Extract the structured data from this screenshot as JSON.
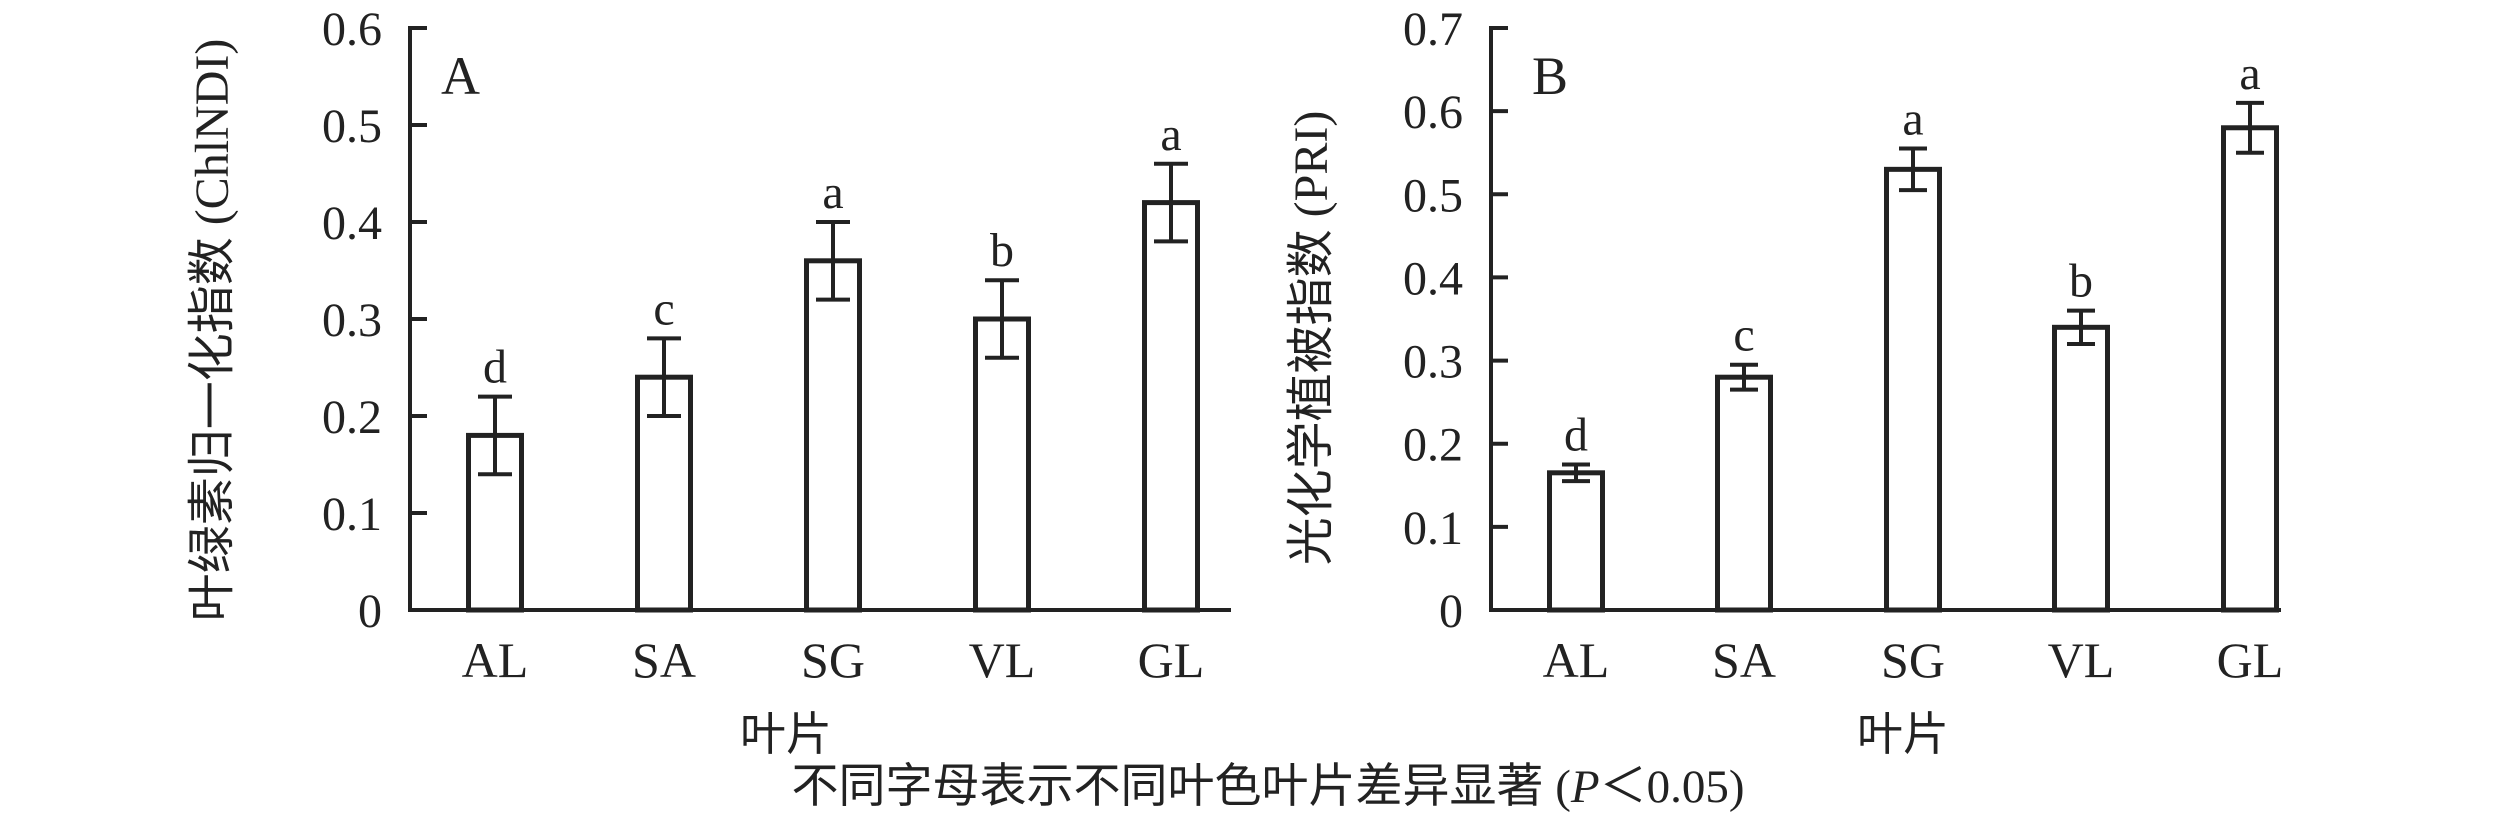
{
  "figure": {
    "caption": {
      "prefix": "不同字母表示不同叶色叶片差异显著 (",
      "italic": "P",
      "suffix": "＜0.05)"
    }
  },
  "colors": {
    "ink": "#222222",
    "background": "#ffffff",
    "bar_fill": "#ffffff"
  },
  "chart_data": [
    {
      "type": "bar",
      "panel_label": "A",
      "title": "",
      "ylabel": "叶绿素归一化指数 (ChlNDI)",
      "xlabel": "叶片",
      "categories": [
        "AL",
        "SA",
        "SG",
        "VL",
        "GL"
      ],
      "values": [
        0.18,
        0.24,
        0.36,
        0.3,
        0.42
      ],
      "errors": [
        0.04,
        0.04,
        0.04,
        0.04,
        0.04
      ],
      "sig_letters": [
        "d",
        "c",
        "a",
        "b",
        "a"
      ],
      "ylim": [
        0,
        0.6
      ],
      "ytick_step": 0.1,
      "yticks": [
        "0",
        "0.1",
        "0.2",
        "0.3",
        "0.4",
        "0.5",
        "0.6"
      ],
      "grid": false,
      "legend": null
    },
    {
      "type": "bar",
      "panel_label": "B",
      "title": "",
      "ylabel": "光化学植被指数 (PRI)",
      "xlabel": "叶片",
      "categories": [
        "AL",
        "SA",
        "SG",
        "VL",
        "GL"
      ],
      "values": [
        0.165,
        0.28,
        0.53,
        0.34,
        0.58
      ],
      "errors": [
        0.01,
        0.015,
        0.025,
        0.02,
        0.03
      ],
      "sig_letters": [
        "d",
        "c",
        "a",
        "b",
        "a"
      ],
      "ylim": [
        0,
        0.7
      ],
      "ytick_step": 0.1,
      "yticks": [
        "0",
        "0.1",
        "0.2",
        "0.3",
        "0.4",
        "0.5",
        "0.6",
        "0.7"
      ],
      "grid": false,
      "legend": null
    }
  ]
}
